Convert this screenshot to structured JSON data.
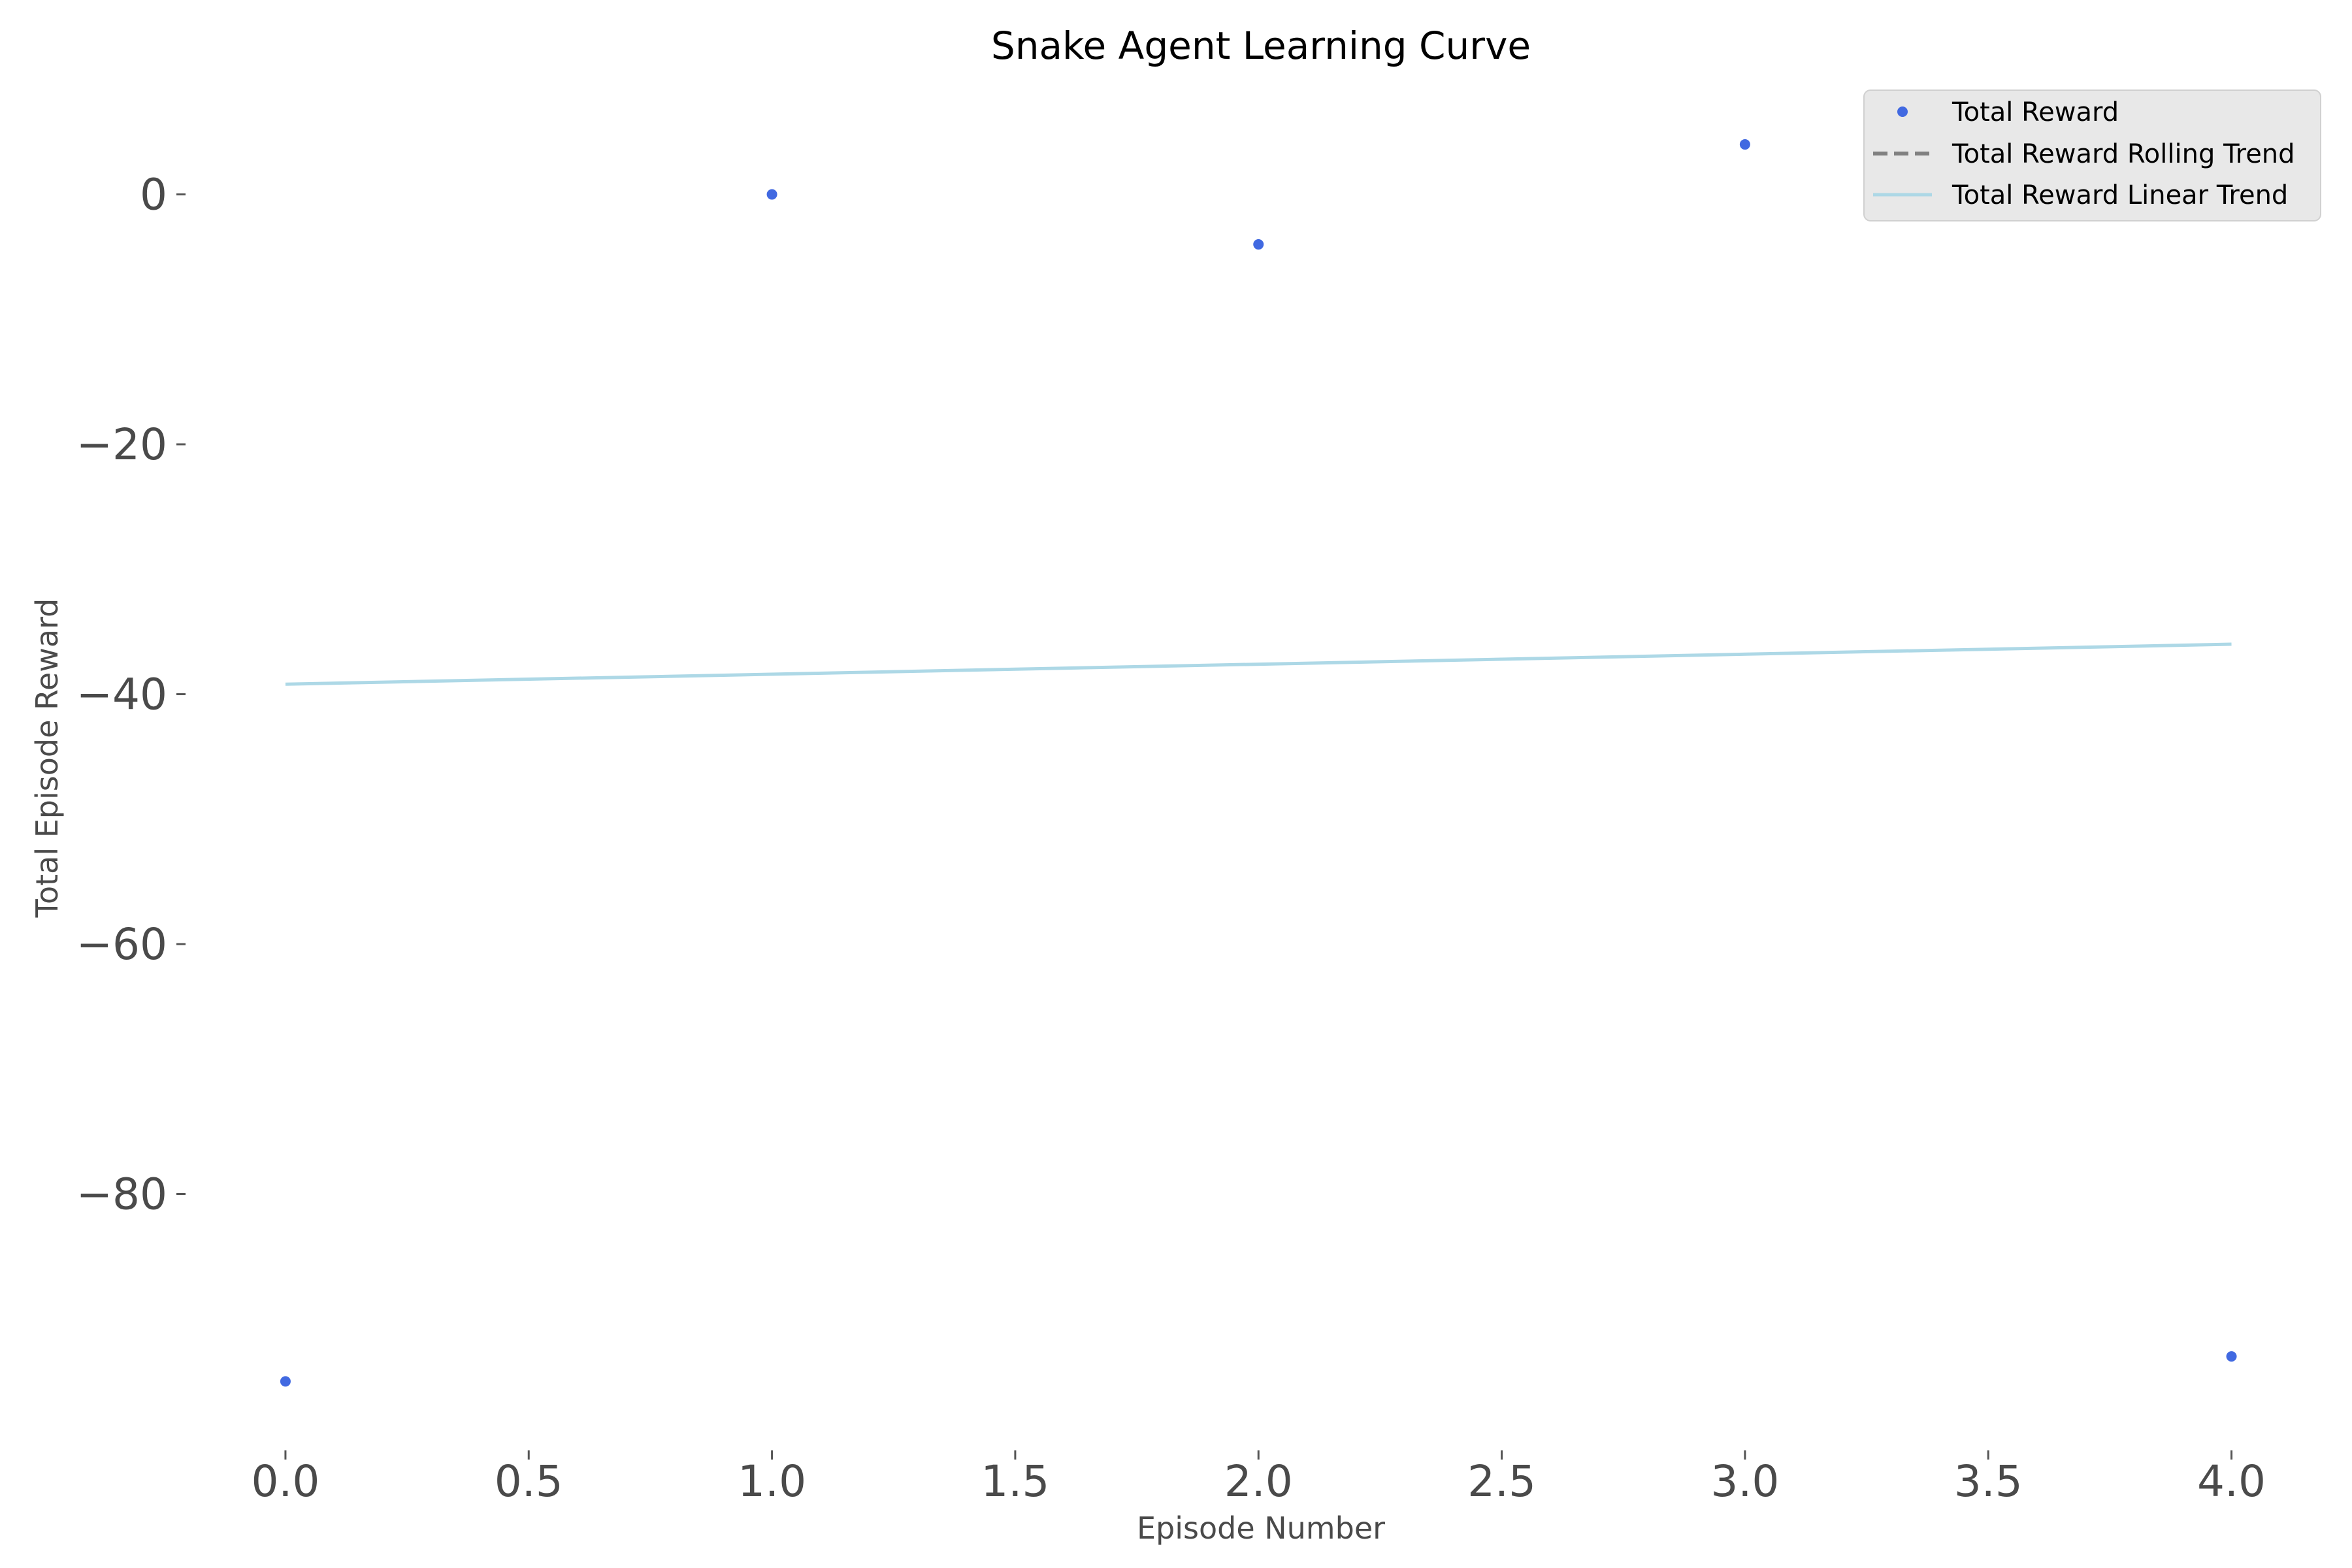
{
  "chart_data": {
    "type": "scatter",
    "title": "Snake Agent Learning Curve",
    "xlabel": "Episode Number",
    "ylabel": "Total Episode Reward",
    "xlim": [
      -0.2,
      4.1
    ],
    "ylim": [
      -100,
      8.5
    ],
    "xticks": [
      0.0,
      0.5,
      1.0,
      1.5,
      2.0,
      2.5,
      3.0,
      3.5,
      4.0
    ],
    "xtick_labels": [
      "0.0",
      "0.5",
      "1.0",
      "1.5",
      "2.0",
      "2.5",
      "3.0",
      "3.5",
      "4.0"
    ],
    "yticks": [
      0,
      -20,
      -40,
      -60,
      -80
    ],
    "ytick_labels": [
      "0",
      "−20",
      "−40",
      "−60",
      "−80"
    ],
    "grid": false,
    "legend_position": "top-right",
    "series": [
      {
        "name": "Total Reward",
        "kind": "points",
        "color": "#4169e1",
        "x": [
          0,
          1,
          2,
          3,
          4
        ],
        "y": [
          -95,
          0,
          -4,
          4,
          -93
        ]
      },
      {
        "name": "Total Reward Rolling Trend",
        "kind": "dashed-line",
        "color": "#808080",
        "x": [],
        "y": []
      },
      {
        "name": "Total Reward Linear Trend",
        "kind": "line",
        "color": "#add8e6",
        "x": [
          0,
          4
        ],
        "y": [
          -39.2,
          -36.0
        ]
      }
    ]
  }
}
